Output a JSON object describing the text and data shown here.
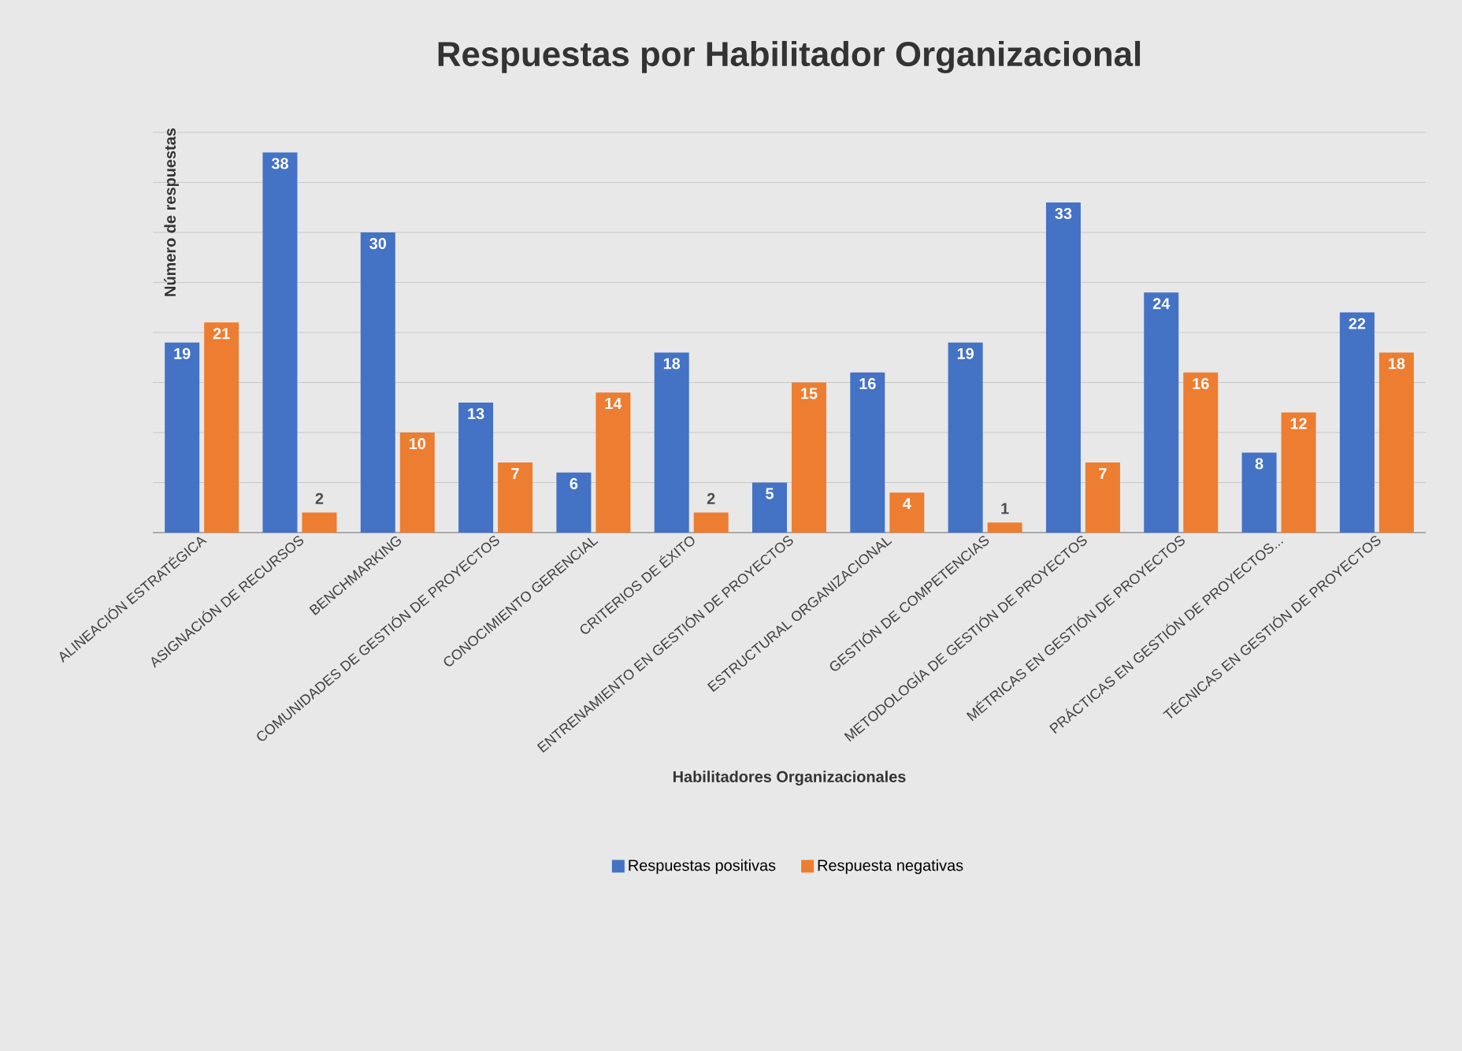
{
  "chart_data": {
    "type": "bar",
    "title": "Respuestas por Habilitador Organizacional",
    "xlabel": "Habilitadores Organizacionales",
    "ylabel": "Número de respuestas",
    "categories": [
      "ALINEACIÓN ESTRATÉGICA",
      "ASIGNACIÓN DE RECURSOS",
      "BENCHMARKING",
      "COMUNIDADES DE GESTIÓN DE PROYECTOS",
      "CONOCIMIENTO GERENCIAL",
      "CRITERIOS DE ÉXITO",
      "ENTRENAMIENTO EN GESTIÓN DE PROYECTOS",
      "ESTRUCTURAL ORGANIZACIONAL",
      "GESTIÓN DE COMPETENCIAS",
      "METODOLOGÍA DE GESTIÓN DE PROYECTOS",
      "MÉTRICAS EN GESTIÓN DE PROYECTOS",
      "PRÁCTICAS EN GESTIÓN DE PROYECTOS...",
      "TÉCNICAS EN GESTIÓN DE PROYECTOS"
    ],
    "series": [
      {
        "name": "Respuestas positivas",
        "color": "#4472c4",
        "values": [
          19,
          38,
          30,
          13,
          6,
          18,
          5,
          16,
          19,
          33,
          24,
          8,
          22
        ]
      },
      {
        "name": "Respuesta negativas",
        "color": "#ed7d31",
        "values": [
          21,
          2,
          10,
          7,
          14,
          2,
          15,
          4,
          1,
          7,
          16,
          12,
          18
        ]
      }
    ],
    "ylim": [
      0,
      40
    ],
    "yticks": [
      {
        "value": 0,
        "label": null
      },
      {
        "value": 5,
        "label": null
      },
      {
        "value": 10,
        "label": null
      },
      {
        "value": 15,
        "label": null
      },
      {
        "value": 20,
        "label": null
      },
      {
        "value": 25,
        "label": null
      },
      {
        "value": 30,
        "label": null
      },
      {
        "value": 35,
        "label": null
      },
      {
        "value": 40,
        "label": null
      }
    ],
    "tick_labels": "x",
    "grid": "y",
    "data_labels": true,
    "legend": "bottom"
  }
}
